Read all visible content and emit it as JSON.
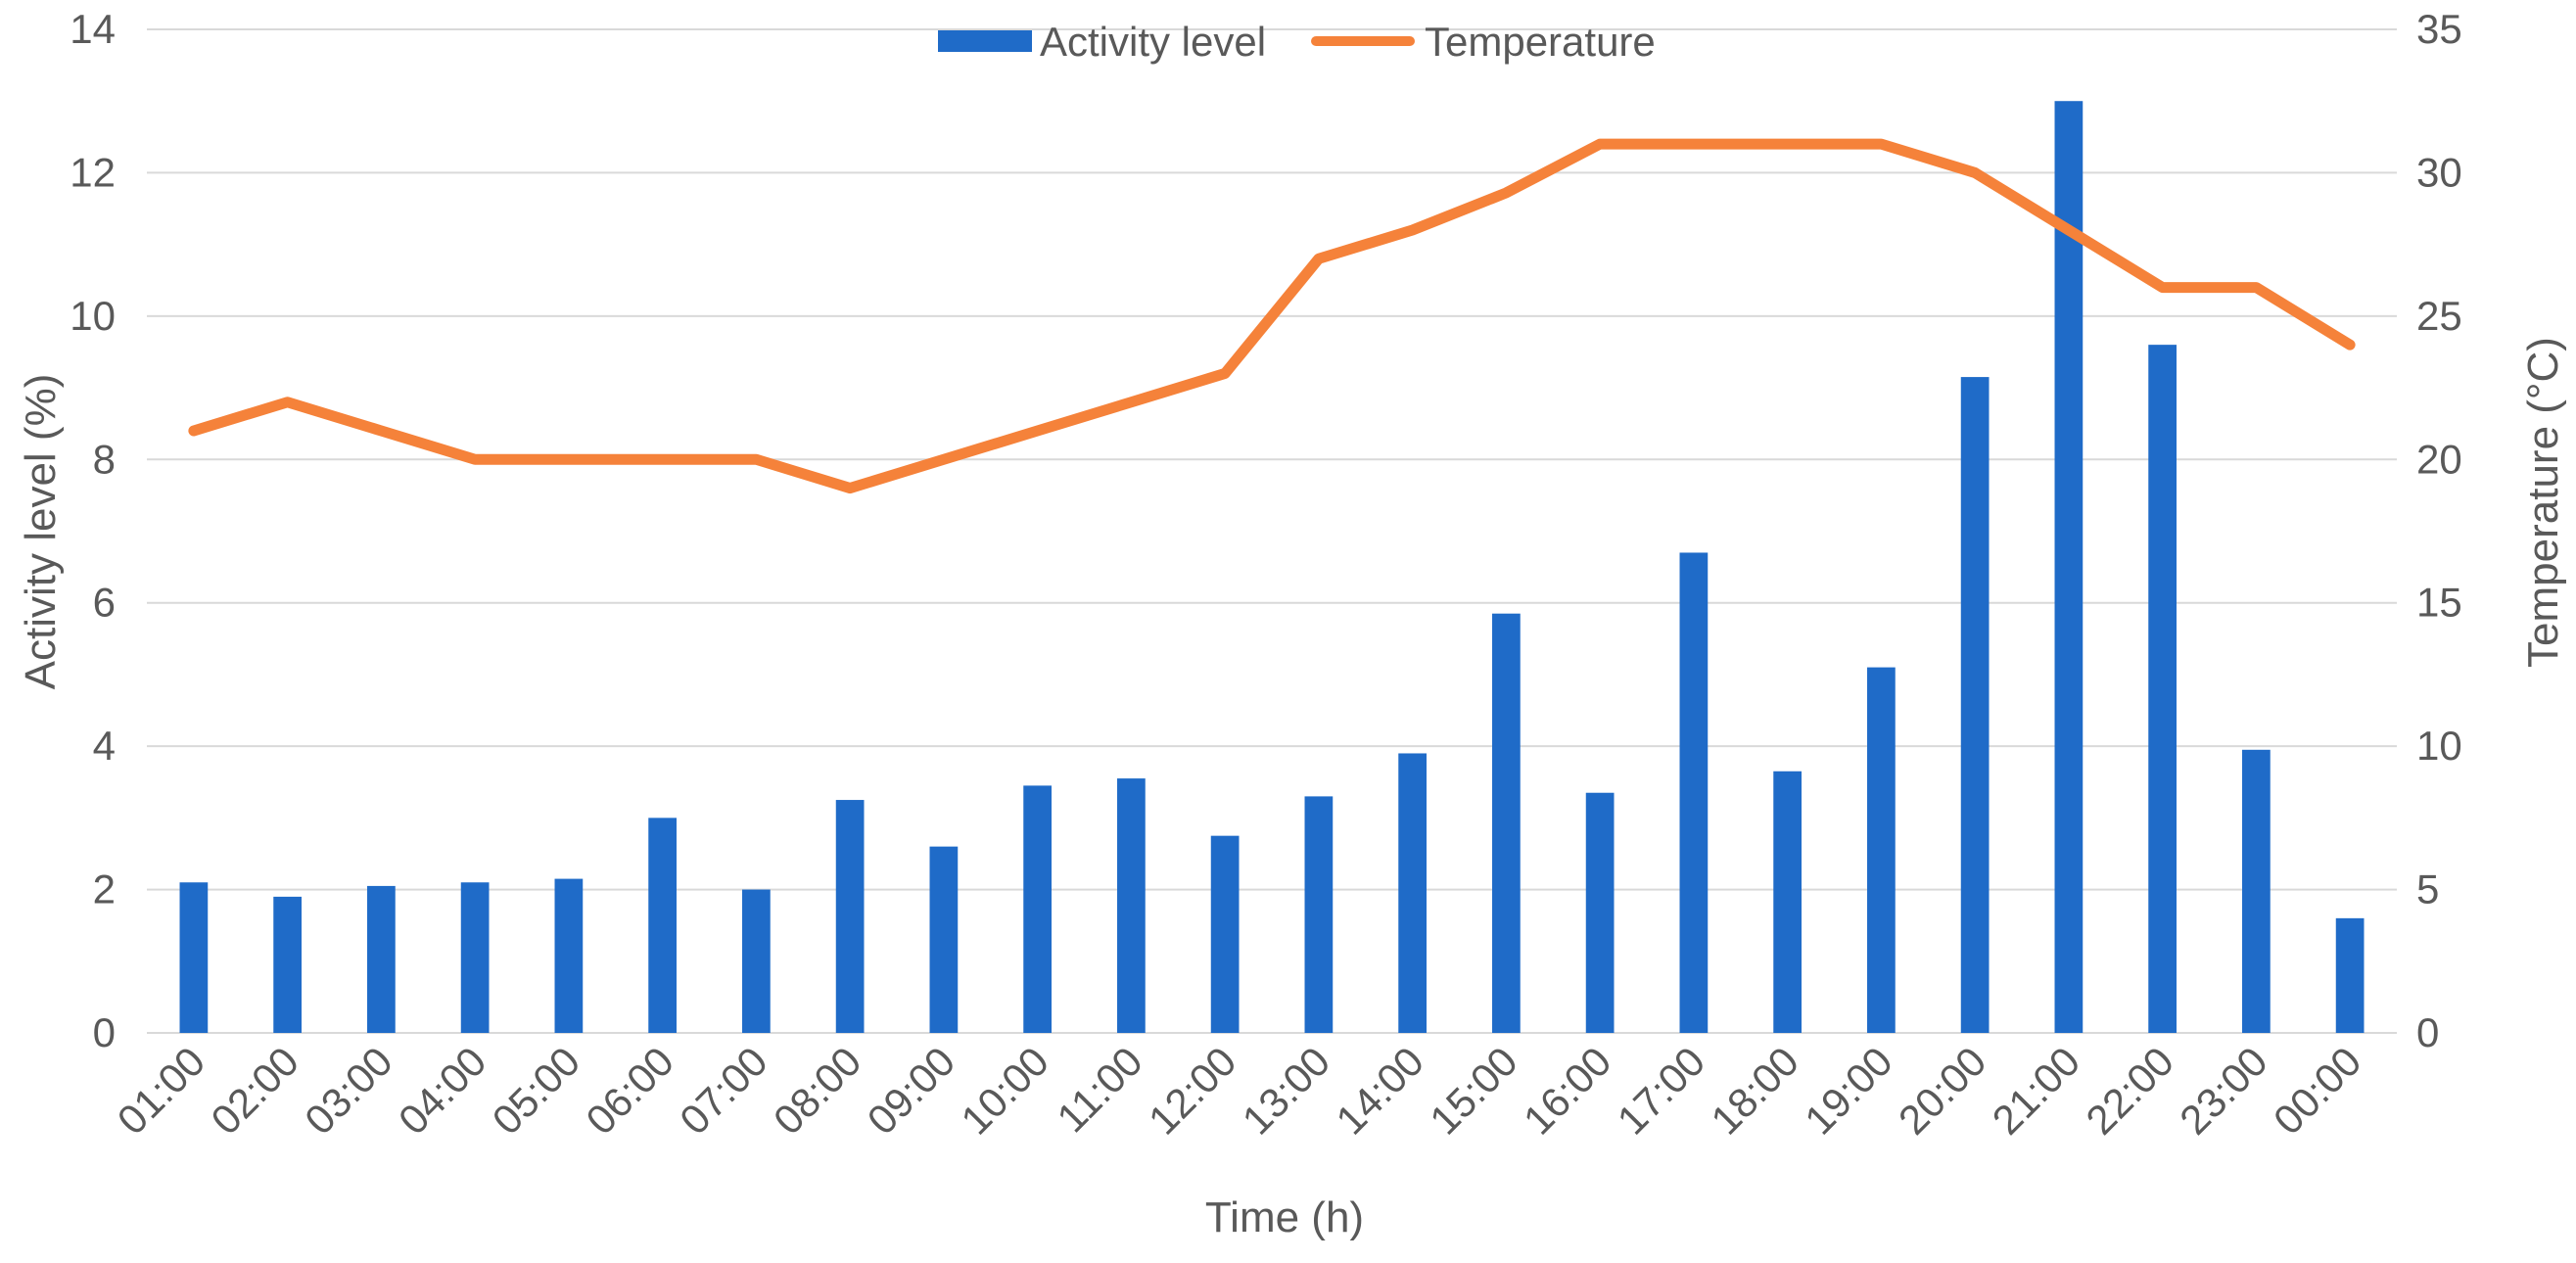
{
  "chart_data": {
    "type": "bar+line",
    "categories": [
      "01:00",
      "02:00",
      "03:00",
      "04:00",
      "05:00",
      "06:00",
      "07:00",
      "08:00",
      "09:00",
      "10:00",
      "11:00",
      "12:00",
      "13:00",
      "14:00",
      "15:00",
      "16:00",
      "17:00",
      "18:00",
      "19:00",
      "20:00",
      "21:00",
      "22:00",
      "23:00",
      "00:00"
    ],
    "series": [
      {
        "name": "Activity level",
        "kind": "bar",
        "axis": "left",
        "color": "#1f6bc8",
        "values": [
          2.1,
          1.9,
          2.05,
          2.1,
          2.15,
          3.0,
          2.0,
          3.25,
          2.6,
          3.45,
          3.55,
          2.75,
          3.3,
          3.9,
          5.85,
          3.35,
          6.7,
          3.65,
          5.1,
          9.15,
          13.0,
          9.6,
          3.95,
          1.6
        ]
      },
      {
        "name": "Temperature",
        "kind": "line",
        "axis": "right",
        "color": "#f5823a",
        "values": [
          21,
          22,
          21,
          20,
          20,
          20,
          20,
          19,
          20,
          21,
          22,
          23,
          27,
          28,
          29.3,
          31,
          31,
          31,
          31,
          30,
          28,
          26,
          26,
          24
        ]
      }
    ],
    "xlabel": "Time (h)",
    "ylabel": "Activity level (%)",
    "y2label": "Temperature (°C)",
    "ylim": [
      0,
      14
    ],
    "y2lim": [
      0,
      35
    ],
    "yticks": [
      "0",
      "2",
      "4",
      "6",
      "8",
      "10",
      "12",
      "14"
    ],
    "y2ticks": [
      "0",
      "5",
      "10",
      "15",
      "20",
      "25",
      "30",
      "35"
    ],
    "legend": {
      "position": "top-center",
      "items": [
        "Activity level",
        "Temperature"
      ]
    },
    "grid": true
  }
}
